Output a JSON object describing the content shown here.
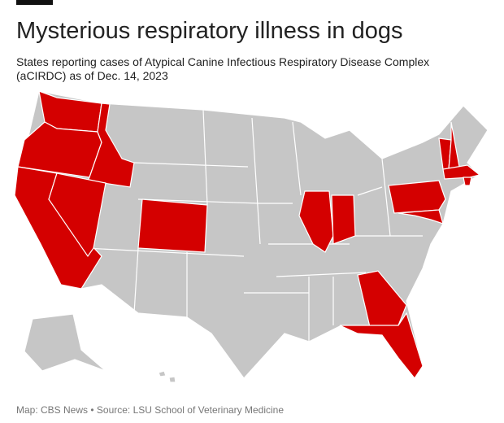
{
  "header": {
    "title": "Mysterious respiratory illness in dogs",
    "subtitle": "States reporting cases of Atypical Canine Infectious Respiratory Disease Complex (aCIRDC) as of Dec. 14, 2023"
  },
  "map": {
    "reporting_color": "#d40000",
    "other_color": "#c6c6c6"
  },
  "footer": {
    "source": "Map: CBS News • Source: LSU School of Veterinary Medicine"
  }
}
